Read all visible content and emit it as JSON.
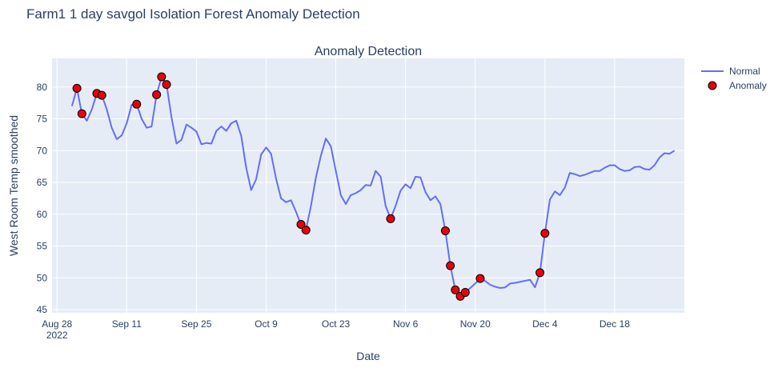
{
  "page": {
    "title": "Farm1 1 day savgol Isolation Forest Anomaly Detection"
  },
  "chart_data": {
    "type": "line",
    "title": "Anomaly Detection",
    "xlabel": "Date",
    "ylabel": "West Room Temp smoothed",
    "x_range": [
      "2022-08-27",
      "2023-01-01"
    ],
    "ylim": [
      44.5,
      84.5
    ],
    "x_ticks": [
      {
        "date": "2022-08-28",
        "label": "Aug 28",
        "sublabel": "2022"
      },
      {
        "date": "2022-09-11",
        "label": "Sep 11"
      },
      {
        "date": "2022-09-25",
        "label": "Sep 25"
      },
      {
        "date": "2022-10-09",
        "label": "Oct 9"
      },
      {
        "date": "2022-10-23",
        "label": "Oct 23"
      },
      {
        "date": "2022-11-06",
        "label": "Nov 6"
      },
      {
        "date": "2022-11-20",
        "label": "Nov 20"
      },
      {
        "date": "2022-12-04",
        "label": "Dec 4"
      },
      {
        "date": "2022-12-18",
        "label": "Dec 18"
      }
    ],
    "y_ticks": [
      45,
      50,
      55,
      60,
      65,
      70,
      75,
      80
    ],
    "grid": true,
    "legend_position": "top-right",
    "colors": {
      "normal": "#636efa",
      "anomaly": "#e8000b",
      "plot_bg": "#e5ecf6"
    },
    "series": [
      {
        "name": "Normal",
        "mode": "lines",
        "points": [
          [
            "2022-08-31",
            77.0
          ],
          [
            "2022-09-01",
            79.8
          ],
          [
            "2022-09-02",
            75.8
          ],
          [
            "2022-09-03",
            74.7
          ],
          [
            "2022-09-04",
            76.5
          ],
          [
            "2022-09-05",
            79.0
          ],
          [
            "2022-09-06",
            78.7
          ],
          [
            "2022-09-07",
            76.5
          ],
          [
            "2022-09-08",
            73.6
          ],
          [
            "2022-09-09",
            71.8
          ],
          [
            "2022-09-10",
            72.4
          ],
          [
            "2022-09-11",
            74.3
          ],
          [
            "2022-09-12",
            77.2
          ],
          [
            "2022-09-13",
            77.3
          ],
          [
            "2022-09-14",
            75.0
          ],
          [
            "2022-09-15",
            73.6
          ],
          [
            "2022-09-16",
            73.8
          ],
          [
            "2022-09-17",
            78.8
          ],
          [
            "2022-09-18",
            81.6
          ],
          [
            "2022-09-19",
            80.4
          ],
          [
            "2022-09-20",
            75.2
          ],
          [
            "2022-09-21",
            71.1
          ],
          [
            "2022-09-22",
            71.7
          ],
          [
            "2022-09-23",
            74.1
          ],
          [
            "2022-09-24",
            73.6
          ],
          [
            "2022-09-25",
            73.0
          ],
          [
            "2022-09-26",
            71.0
          ],
          [
            "2022-09-27",
            71.2
          ],
          [
            "2022-09-28",
            71.1
          ],
          [
            "2022-09-29",
            73.1
          ],
          [
            "2022-09-30",
            73.8
          ],
          [
            "2022-10-01",
            73.1
          ],
          [
            "2022-10-02",
            74.3
          ],
          [
            "2022-10-03",
            74.7
          ],
          [
            "2022-10-04",
            72.3
          ],
          [
            "2022-10-05",
            67.3
          ],
          [
            "2022-10-06",
            63.8
          ],
          [
            "2022-10-07",
            65.5
          ],
          [
            "2022-10-08",
            69.4
          ],
          [
            "2022-10-09",
            70.5
          ],
          [
            "2022-10-10",
            69.5
          ],
          [
            "2022-10-11",
            65.6
          ],
          [
            "2022-10-12",
            62.5
          ],
          [
            "2022-10-13",
            61.9
          ],
          [
            "2022-10-14",
            62.2
          ],
          [
            "2022-10-15",
            60.4
          ],
          [
            "2022-10-16",
            58.4
          ],
          [
            "2022-10-17",
            57.5
          ],
          [
            "2022-10-18",
            61.3
          ],
          [
            "2022-10-19",
            65.8
          ],
          [
            "2022-10-20",
            69.2
          ],
          [
            "2022-10-21",
            71.9
          ],
          [
            "2022-10-22",
            70.7
          ],
          [
            "2022-10-23",
            66.8
          ],
          [
            "2022-10-24",
            63.0
          ],
          [
            "2022-10-25",
            61.6
          ],
          [
            "2022-10-26",
            63.0
          ],
          [
            "2022-10-27",
            63.3
          ],
          [
            "2022-10-28",
            63.8
          ],
          [
            "2022-10-29",
            64.6
          ],
          [
            "2022-10-30",
            64.5
          ],
          [
            "2022-10-31",
            66.8
          ],
          [
            "2022-11-01",
            65.9
          ],
          [
            "2022-11-02",
            61.3
          ],
          [
            "2022-11-03",
            59.3
          ],
          [
            "2022-11-04",
            61.3
          ],
          [
            "2022-11-05",
            63.7
          ],
          [
            "2022-11-06",
            64.7
          ],
          [
            "2022-11-07",
            64.1
          ],
          [
            "2022-11-08",
            65.9
          ],
          [
            "2022-11-09",
            65.8
          ],
          [
            "2022-11-10",
            63.5
          ],
          [
            "2022-11-11",
            62.2
          ],
          [
            "2022-11-12",
            62.8
          ],
          [
            "2022-11-13",
            61.6
          ],
          [
            "2022-11-14",
            57.4
          ],
          [
            "2022-11-15",
            51.9
          ],
          [
            "2022-11-16",
            48.1
          ],
          [
            "2022-11-17",
            47.1
          ],
          [
            "2022-11-18",
            47.7
          ],
          [
            "2022-11-19",
            48.4
          ],
          [
            "2022-11-20",
            49.1
          ],
          [
            "2022-11-21",
            49.9
          ],
          [
            "2022-11-22",
            49.5
          ],
          [
            "2022-11-23",
            48.9
          ],
          [
            "2022-11-24",
            48.6
          ],
          [
            "2022-11-25",
            48.4
          ],
          [
            "2022-11-26",
            48.5
          ],
          [
            "2022-11-27",
            49.1
          ],
          [
            "2022-11-28",
            49.2
          ],
          [
            "2022-12-01",
            49.7
          ],
          [
            "2022-12-02",
            48.5
          ],
          [
            "2022-12-03",
            50.8
          ],
          [
            "2022-12-04",
            57.0
          ],
          [
            "2022-12-05",
            62.3
          ],
          [
            "2022-12-06",
            63.6
          ],
          [
            "2022-12-07",
            63.0
          ],
          [
            "2022-12-08",
            64.2
          ],
          [
            "2022-12-09",
            66.5
          ],
          [
            "2022-12-10",
            66.3
          ],
          [
            "2022-12-11",
            66.0
          ],
          [
            "2022-12-12",
            66.2
          ],
          [
            "2022-12-13",
            66.5
          ],
          [
            "2022-12-14",
            66.8
          ],
          [
            "2022-12-15",
            66.8
          ],
          [
            "2022-12-16",
            67.3
          ],
          [
            "2022-12-17",
            67.7
          ],
          [
            "2022-12-18",
            67.7
          ],
          [
            "2022-12-19",
            67.1
          ],
          [
            "2022-12-20",
            66.8
          ],
          [
            "2022-12-21",
            66.9
          ],
          [
            "2022-12-22",
            67.4
          ],
          [
            "2022-12-23",
            67.5
          ],
          [
            "2022-12-24",
            67.1
          ],
          [
            "2022-12-25",
            67.0
          ],
          [
            "2022-12-26",
            67.7
          ],
          [
            "2022-12-27",
            68.9
          ],
          [
            "2022-12-28",
            69.6
          ],
          [
            "2022-12-29",
            69.5
          ],
          [
            "2022-12-30",
            70.0
          ]
        ]
      },
      {
        "name": "Anomaly",
        "mode": "markers",
        "points": [
          [
            "2022-09-01",
            79.8
          ],
          [
            "2022-09-02",
            75.8
          ],
          [
            "2022-09-05",
            79.0
          ],
          [
            "2022-09-06",
            78.7
          ],
          [
            "2022-09-13",
            77.3
          ],
          [
            "2022-09-17",
            78.8
          ],
          [
            "2022-09-18",
            81.6
          ],
          [
            "2022-09-19",
            80.4
          ],
          [
            "2022-10-16",
            58.4
          ],
          [
            "2022-10-17",
            57.5
          ],
          [
            "2022-11-03",
            59.3
          ],
          [
            "2022-11-14",
            57.4
          ],
          [
            "2022-11-15",
            51.9
          ],
          [
            "2022-11-16",
            48.1
          ],
          [
            "2022-11-17",
            47.1
          ],
          [
            "2022-11-18",
            47.7
          ],
          [
            "2022-11-21",
            49.9
          ],
          [
            "2022-12-03",
            50.8
          ],
          [
            "2022-12-04",
            57.0
          ]
        ]
      }
    ]
  }
}
